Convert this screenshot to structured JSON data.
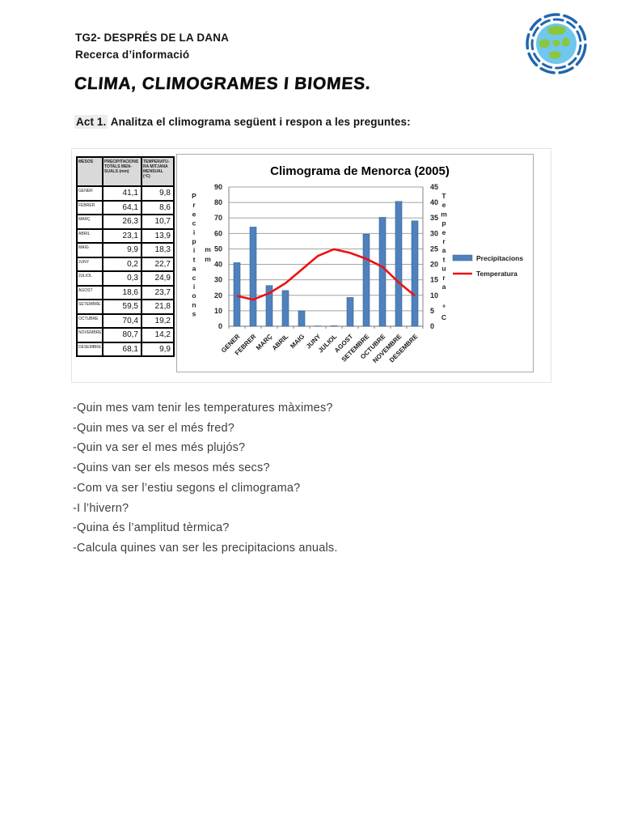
{
  "header": {
    "line1": "TG2- DESPRÉS DE LA DANA",
    "line2": "Recerca d’informació"
  },
  "title": "CLIMA, CLIMOGRAMES I BIOMES.",
  "activity": {
    "label": "Act 1.",
    "text": " Analitza el climograma següent i respon a les preguntes:"
  },
  "table": {
    "headers": [
      "MESOS",
      "PRECIPITACIONS\nTOTALS MEN-\nSUALS (mm)",
      "TEMPERATU-\nRA MITJANA\nMENSUAL\n(ºC)"
    ],
    "rows": [
      [
        "GENER",
        "41,1",
        "9,8"
      ],
      [
        "FEBRER",
        "64,1",
        "8,6"
      ],
      [
        "MARÇ",
        "26,3",
        "10,7"
      ],
      [
        "ABRIL",
        "23,1",
        "13,9"
      ],
      [
        "MAIG",
        "9,9",
        "18,3"
      ],
      [
        "JUNY",
        "0,2",
        "22,7"
      ],
      [
        "JULIOL",
        "0,3",
        "24,9"
      ],
      [
        "AGOST",
        "18,6",
        "23,7"
      ],
      [
        "SETEMBRE",
        "59,5",
        "21,8"
      ],
      [
        "OCTUBRE",
        "70,4",
        "19,2"
      ],
      [
        "NOVEMBRE",
        "80,7",
        "14,2"
      ],
      [
        "DESEMBRE",
        "68,1",
        "9,9"
      ]
    ]
  },
  "chart_data": {
    "type": "bar+line",
    "title": "Climograma de Menorca (2005)",
    "categories": [
      "GENER",
      "FEBRER",
      "MARÇ",
      "ABRIL",
      "MAIG",
      "JUNY",
      "JULIOL",
      "AGOST",
      "SETEMBRE",
      "OCTUBRE",
      "NOVEMBRE",
      "DESEMBRE"
    ],
    "series": [
      {
        "name": "Precipitacions",
        "type": "bar",
        "axis": "left",
        "color": "#4f81bd",
        "values": [
          41.1,
          64.1,
          26.3,
          23.1,
          9.9,
          0.2,
          0.3,
          18.6,
          59.5,
          70.4,
          80.7,
          68.1
        ]
      },
      {
        "name": "Temperatura",
        "type": "line",
        "axis": "right",
        "color": "#ee1111",
        "values": [
          9.8,
          8.6,
          10.7,
          13.9,
          18.3,
          22.7,
          24.9,
          23.7,
          21.8,
          19.2,
          14.2,
          9.9
        ]
      }
    ],
    "left_axis": {
      "label": "Precipitacions",
      "unit": "mm",
      "min": 0,
      "max": 90,
      "step": 10
    },
    "right_axis": {
      "label": "Temperatura",
      "unit": "ºC",
      "min": 0,
      "max": 45,
      "step": 5
    },
    "grid": true,
    "legend_position": "right",
    "legend": [
      "Precipitacions",
      "Temperatura"
    ]
  },
  "questions": [
    "-Quin mes vam tenir les temperatures màximes?",
    "-Quin mes va ser el més fred?",
    "-Quin va ser el mes més plujós?",
    "-Quins van ser els mesos més secs?",
    "-Com va ser l’estiu segons el climograma?",
    "-I l’hivern?",
    "-Quina és l’amplitud tèrmica?",
    "-Calcula quines van ser les precipitacions anuals."
  ],
  "colors": {
    "bar": "#4f81bd",
    "line": "#ee1111",
    "table_header_bg": "#d9d9d9",
    "logo_ring": "#2166ad",
    "logo_water": "#6fc7ee",
    "logo_land": "#8cc63e"
  }
}
